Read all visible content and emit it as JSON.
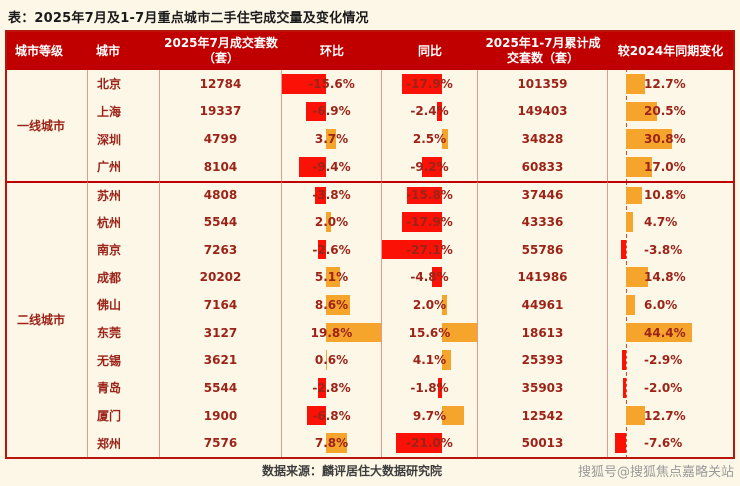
{
  "chart_data": {
    "type": "table",
    "title": "表：2025年7月及1-7月重点城市二手住宅成交量及变化情况",
    "columns": [
      "城市等级",
      "城市",
      "2025年7月成交套数（套）",
      "环比",
      "同比",
      "2025年1-7月累计成交套数（套）",
      "较2024年同期变化"
    ],
    "tiers": [
      {
        "label": "一线城市",
        "rows": [
          {
            "city": "北京",
            "jul_units": "12784",
            "mom": -15.6,
            "mom_label": "-15.6%",
            "yoy": -17.9,
            "yoy_label": "-17.9%",
            "cum_units": "101359",
            "cum_change": 12.7,
            "cum_change_label": "12.7%"
          },
          {
            "city": "上海",
            "jul_units": "19337",
            "mom": -6.9,
            "mom_label": "-6.9%",
            "yoy": -2.4,
            "yoy_label": "-2.4%",
            "cum_units": "149403",
            "cum_change": 20.5,
            "cum_change_label": "20.5%"
          },
          {
            "city": "深圳",
            "jul_units": "4799",
            "mom": 3.7,
            "mom_label": "3.7%",
            "yoy": 2.5,
            "yoy_label": "2.5%",
            "cum_units": "34828",
            "cum_change": 30.8,
            "cum_change_label": "30.8%"
          },
          {
            "city": "广州",
            "jul_units": "8104",
            "mom": -9.4,
            "mom_label": "-9.4%",
            "yoy": -9.2,
            "yoy_label": "-9.2%",
            "cum_units": "60833",
            "cum_change": 17.0,
            "cum_change_label": "17.0%"
          }
        ]
      },
      {
        "label": "二线城市",
        "rows": [
          {
            "city": "苏州",
            "jul_units": "4808",
            "mom": -3.8,
            "mom_label": "-3.8%",
            "yoy": -15.8,
            "yoy_label": "-15.8%",
            "cum_units": "37446",
            "cum_change": 10.8,
            "cum_change_label": "10.8%"
          },
          {
            "city": "杭州",
            "jul_units": "5544",
            "mom": 2.0,
            "mom_label": "2.0%",
            "yoy": -17.9,
            "yoy_label": "-17.9%",
            "cum_units": "43336",
            "cum_change": 4.7,
            "cum_change_label": "4.7%"
          },
          {
            "city": "南京",
            "jul_units": "7263",
            "mom": -2.6,
            "mom_label": "-2.6%",
            "yoy": -27.1,
            "yoy_label": "-27.1%",
            "cum_units": "55786",
            "cum_change": -3.8,
            "cum_change_label": "-3.8%"
          },
          {
            "city": "成都",
            "jul_units": "20202",
            "mom": 5.1,
            "mom_label": "5.1%",
            "yoy": -4.8,
            "yoy_label": "-4.8%",
            "cum_units": "141986",
            "cum_change": 14.8,
            "cum_change_label": "14.8%"
          },
          {
            "city": "佛山",
            "jul_units": "7164",
            "mom": 8.6,
            "mom_label": "8.6%",
            "yoy": 2.0,
            "yoy_label": "2.0%",
            "cum_units": "44961",
            "cum_change": 6.0,
            "cum_change_label": "6.0%"
          },
          {
            "city": "东莞",
            "jul_units": "3127",
            "mom": 19.8,
            "mom_label": "19.8%",
            "yoy": 15.6,
            "yoy_label": "15.6%",
            "cum_units": "18613",
            "cum_change": 44.4,
            "cum_change_label": "44.4%"
          },
          {
            "city": "无锡",
            "jul_units": "3621",
            "mom": 0.6,
            "mom_label": "0.6%",
            "yoy": 4.1,
            "yoy_label": "4.1%",
            "cum_units": "25393",
            "cum_change": -2.9,
            "cum_change_label": "-2.9%"
          },
          {
            "city": "青岛",
            "jul_units": "5544",
            "mom": -2.8,
            "mom_label": "-2.8%",
            "yoy": -1.8,
            "yoy_label": "-1.8%",
            "cum_units": "35903",
            "cum_change": -2.0,
            "cum_change_label": "-2.0%"
          },
          {
            "city": "厦门",
            "jul_units": "1900",
            "mom": -6.8,
            "mom_label": "-6.8%",
            "yoy": 9.7,
            "yoy_label": "9.7%",
            "cum_units": "12542",
            "cum_change": 12.7,
            "cum_change_label": "12.7%"
          },
          {
            "city": "郑州",
            "jul_units": "7576",
            "mom": 7.8,
            "mom_label": "7.8%",
            "yoy": -21.0,
            "yoy_label": "-21.0%",
            "cum_units": "50013",
            "cum_change": -7.6,
            "cum_change_label": "-7.6%"
          }
        ]
      }
    ],
    "source_note": "数据来源：麟评居住大数据研究院",
    "watermark": "搜狐号@搜狐焦点嘉略关站",
    "colors": {
      "page_bg": "#fdf7e7",
      "header_bg": "#c00000",
      "header_text": "#ffffff",
      "body_text": "#9b2318",
      "bar_negative": "#fb1105",
      "bar_positive": "#f6a52c",
      "grid_line": "rgba(192,0,0,0.38)",
      "outer_border": "#b8150b",
      "tier_separator": "#c00000",
      "axis_dashed": "#e0442a",
      "source_text": "#3d3d3d",
      "watermark_text": "#9a9a9a"
    }
  }
}
